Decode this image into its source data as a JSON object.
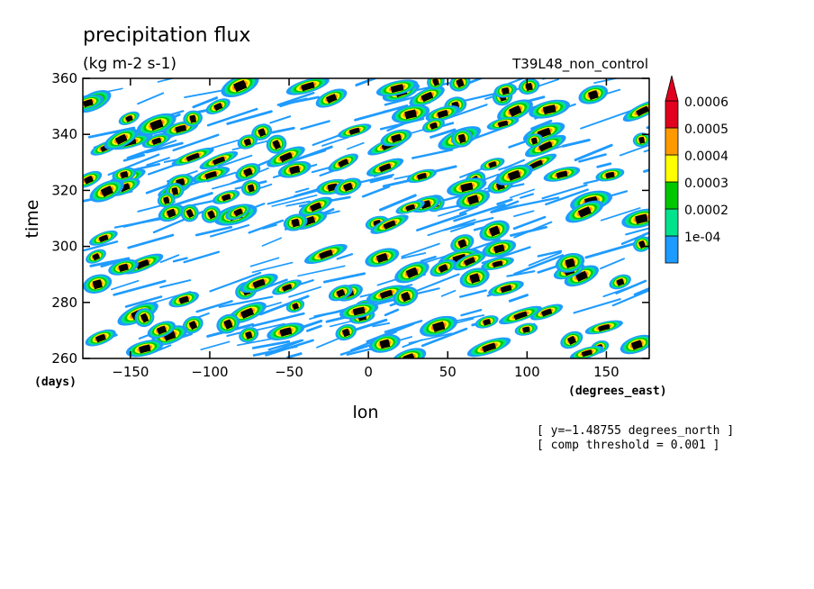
{
  "chart_data": {
    "type": "heatmap",
    "title": "precipitation flux",
    "subtitle": "(kg m-2 s-1)",
    "run_label": "T39L48_non_control",
    "xlabel": "lon",
    "x_units": "(degrees_east)",
    "ylabel": "time",
    "y_units": "(days)",
    "xlim": [
      -180,
      177
    ],
    "ylim": [
      260,
      360
    ],
    "x_ticks": [
      -150,
      -100,
      -50,
      0,
      50,
      100,
      150
    ],
    "y_ticks": [
      260,
      280,
      300,
      320,
      340,
      360
    ],
    "x_tick_labels": [
      "−150",
      "−100",
      "−50",
      "0",
      "50",
      "100",
      "150"
    ],
    "y_tick_labels": [
      "260",
      "280",
      "300",
      "320",
      "340",
      "360"
    ],
    "legend": {
      "placement": "right",
      "labels": [
        "0.0006",
        "0.0005",
        "0.0004",
        "0.0003",
        "0.0002",
        "1e-04"
      ],
      "levels": [
        0.0001,
        0.0002,
        0.0003,
        0.0004,
        0.0005,
        0.0006
      ],
      "colors": [
        "#1e9bff",
        "#00e38c",
        "#00c800",
        "#ffff00",
        "#ff9900",
        "#e1001e"
      ],
      "above_color": "#e1001e"
    },
    "annotations": [
      "[ y=−1.48755 degrees_north ]",
      "[ comp threshold = 0.001 ]"
    ],
    "filled_above_threshold_color": "#000000",
    "background_color": "#ffffff"
  }
}
